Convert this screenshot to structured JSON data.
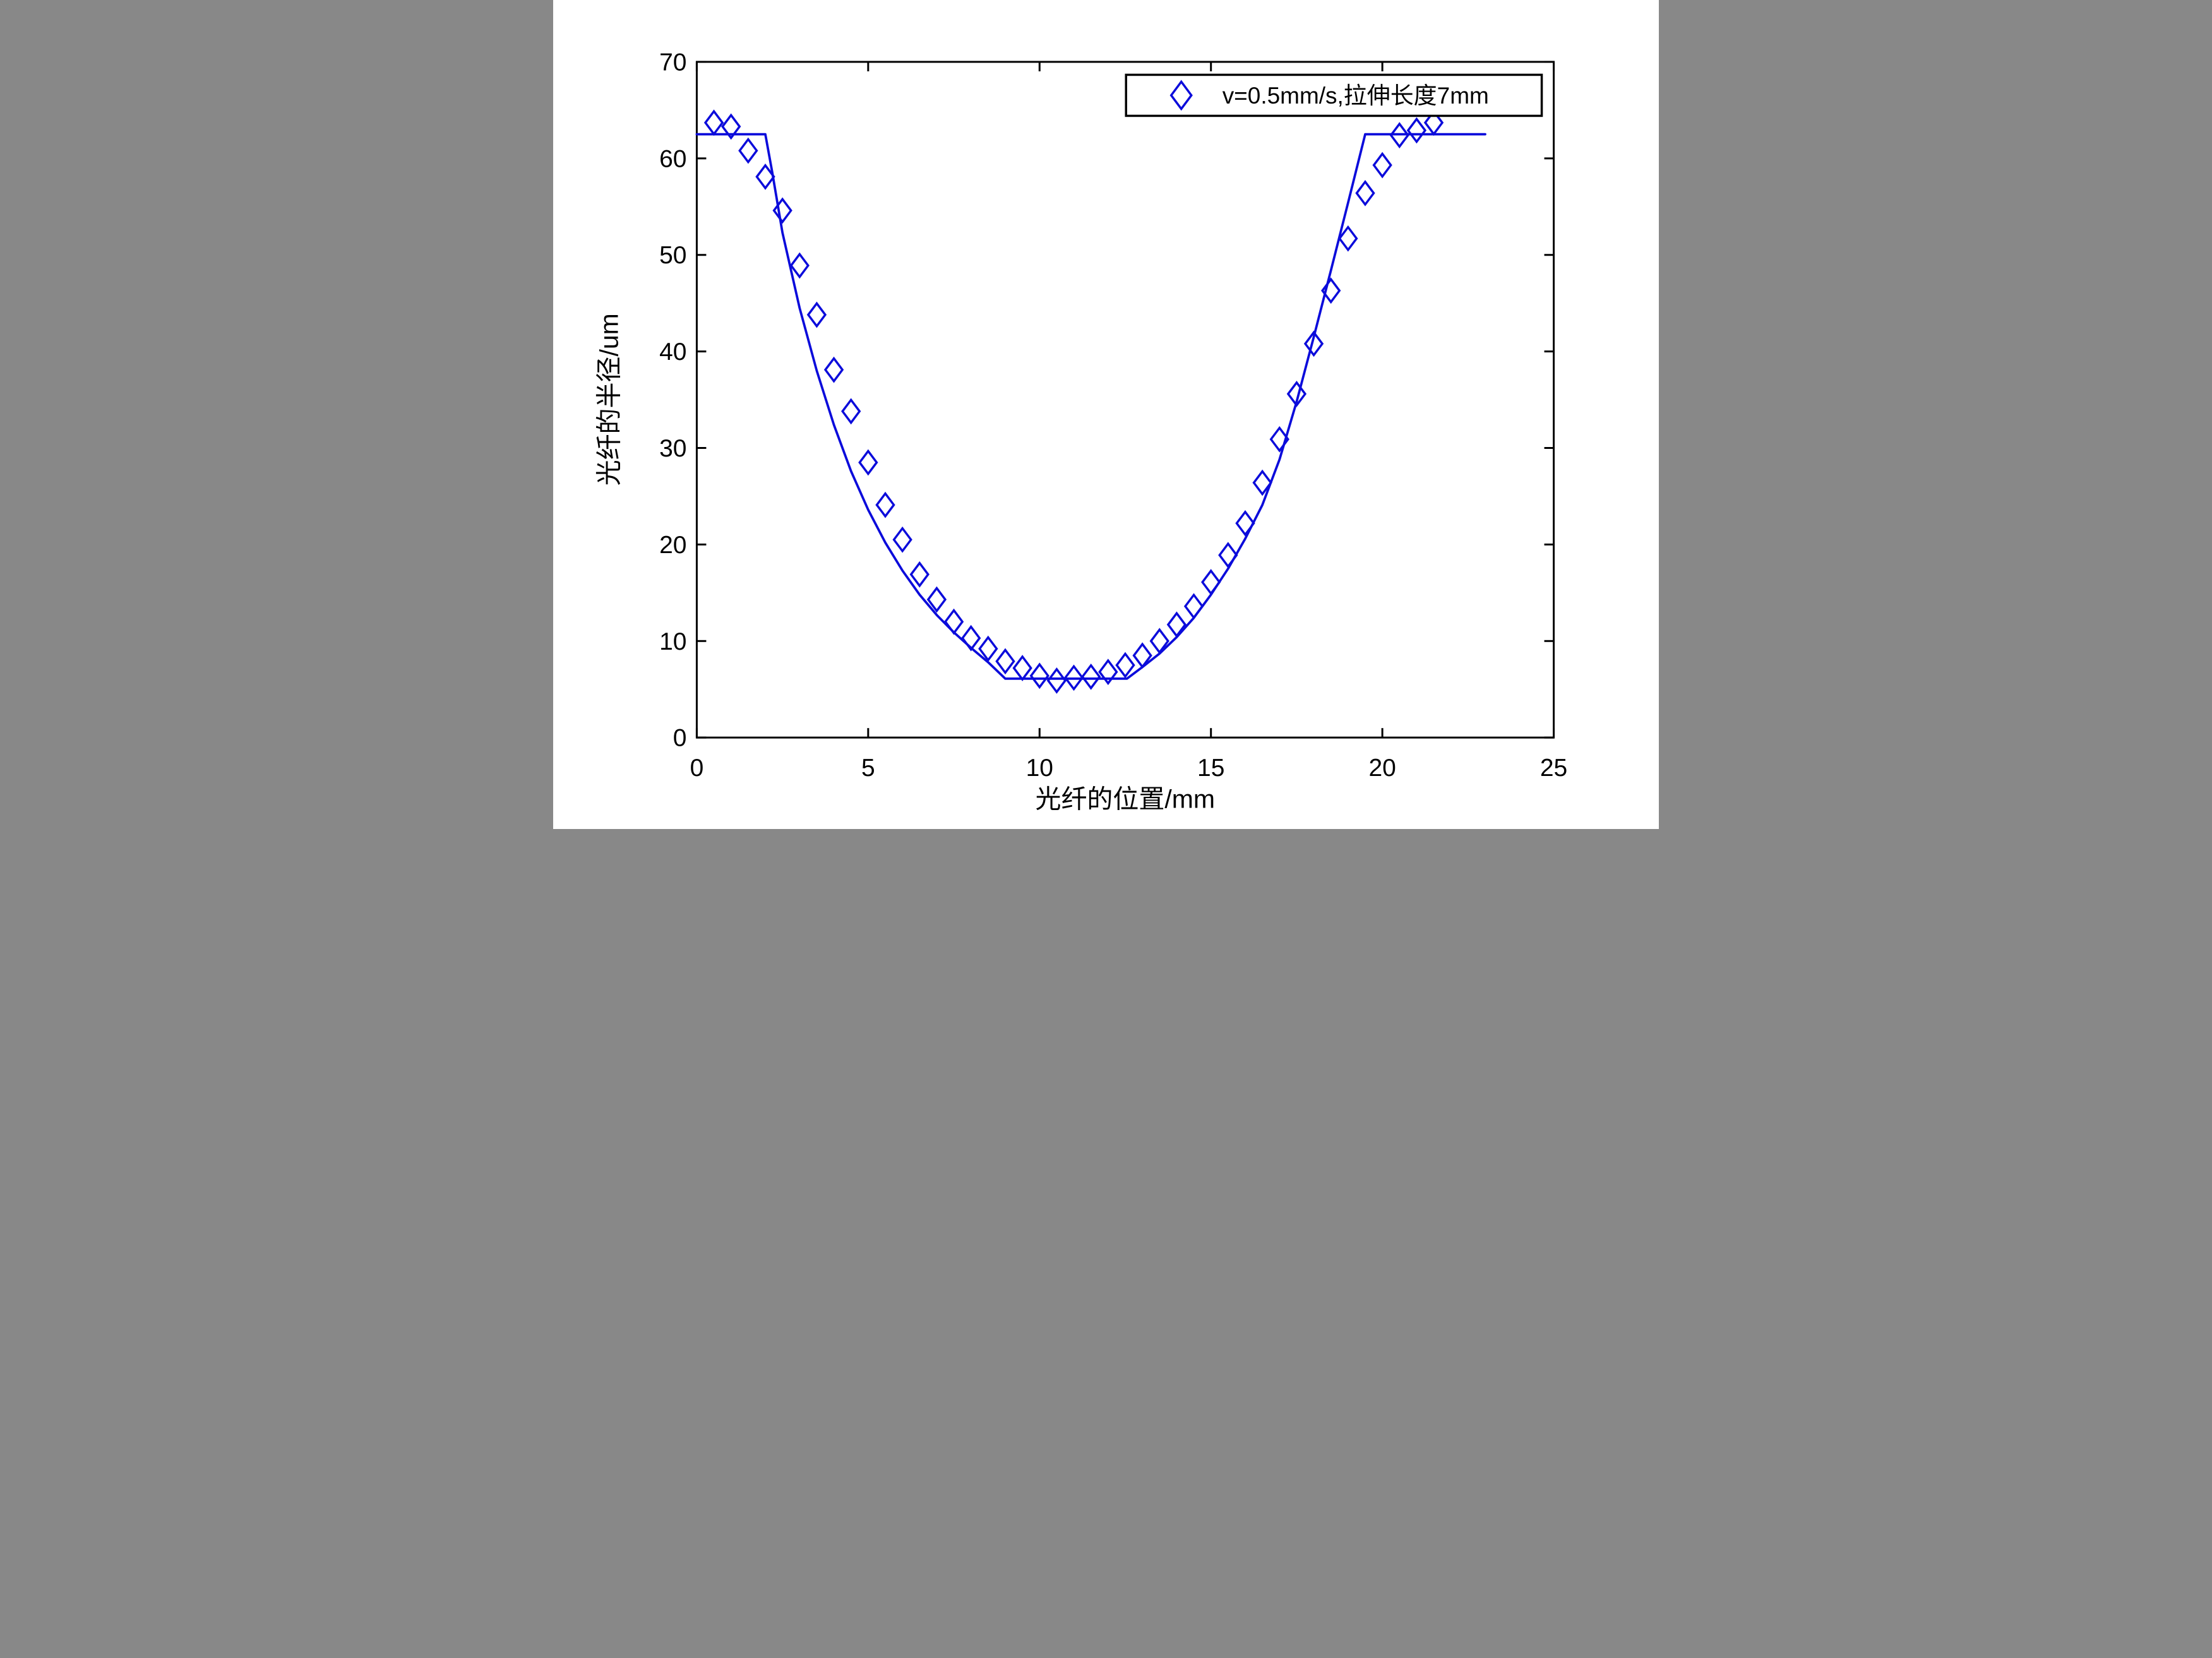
{
  "figure": {
    "background": "#ffffff",
    "frame_color": "#000000",
    "accent": "#0b0bdb"
  },
  "chart_data": {
    "type": "scatter",
    "title": "",
    "xlabel": "光纤的位置/mm",
    "ylabel": "光纤的半径/um",
    "xlim": [
      0,
      25
    ],
    "ylim": [
      0,
      70
    ],
    "xticks": [
      0,
      5,
      10,
      15,
      20,
      25
    ],
    "yticks": [
      0,
      10,
      20,
      30,
      40,
      50,
      60,
      70
    ],
    "grid": false,
    "legend": {
      "position": "top-right",
      "marker": "diamond-icon",
      "marker_color": "#0b0bdb",
      "label": "v=0.5mm/s,拉伸长度7mm"
    },
    "series": [
      {
        "name": "measured-points",
        "type": "scatter",
        "marker": "diamond",
        "color": "#0b0bdb",
        "x": [
          0.5,
          1.0,
          1.5,
          2.0,
          2.5,
          3.0,
          3.5,
          4.0,
          4.5,
          5.0,
          5.5,
          6.0,
          6.5,
          7.0,
          7.5,
          8.0,
          8.5,
          9.0,
          9.5,
          10.0,
          10.5,
          11.0,
          11.5,
          12.0,
          12.5,
          13.0,
          13.5,
          14.0,
          14.5,
          15.0,
          15.5,
          16.0,
          16.5,
          17.0,
          17.5,
          18.0,
          18.5,
          19.0,
          19.5,
          20.0,
          20.5,
          21.0,
          21.5
        ],
        "y": [
          63.7,
          63.3,
          60.8,
          58.1,
          54.6,
          48.9,
          43.8,
          38.1,
          33.8,
          28.5,
          24.1,
          20.5,
          16.9,
          14.3,
          12.0,
          10.3,
          9.2,
          7.9,
          7.2,
          6.4,
          5.9,
          6.2,
          6.3,
          6.8,
          7.5,
          8.5,
          10.0,
          11.7,
          13.6,
          16.1,
          18.9,
          22.2,
          26.4,
          30.9,
          35.6,
          40.8,
          46.3,
          51.7,
          56.4,
          59.3,
          62.4,
          62.9,
          63.7
        ],
        "legend_entry": true
      },
      {
        "name": "model-line",
        "type": "line",
        "color": "#0b0bdb",
        "points": [
          [
            0,
            62.5
          ],
          [
            2.0,
            62.5
          ],
          [
            2.2,
            58.6
          ],
          [
            2.5,
            52.3
          ],
          [
            3.0,
            44.5
          ],
          [
            3.5,
            38.0
          ],
          [
            4.0,
            32.4
          ],
          [
            4.5,
            27.6
          ],
          [
            5.0,
            23.6
          ],
          [
            5.5,
            20.2
          ],
          [
            6.0,
            17.3
          ],
          [
            6.5,
            14.8
          ],
          [
            7.0,
            12.7
          ],
          [
            7.5,
            10.9
          ],
          [
            8.0,
            9.3
          ],
          [
            8.5,
            7.8
          ],
          [
            9.0,
            6.1
          ],
          [
            12.55,
            6.1
          ],
          [
            13.0,
            7.3
          ],
          [
            13.5,
            8.7
          ],
          [
            14.0,
            10.4
          ],
          [
            14.5,
            12.4
          ],
          [
            15.0,
            14.8
          ],
          [
            15.5,
            17.5
          ],
          [
            16.0,
            20.6
          ],
          [
            16.5,
            24.1
          ],
          [
            17.0,
            28.8
          ],
          [
            17.5,
            34.8
          ],
          [
            18.0,
            41.5
          ],
          [
            18.5,
            48.4
          ],
          [
            19.0,
            55.4
          ],
          [
            19.5,
            62.5
          ],
          [
            23.0,
            62.5
          ]
        ],
        "legend_entry": false
      }
    ]
  }
}
